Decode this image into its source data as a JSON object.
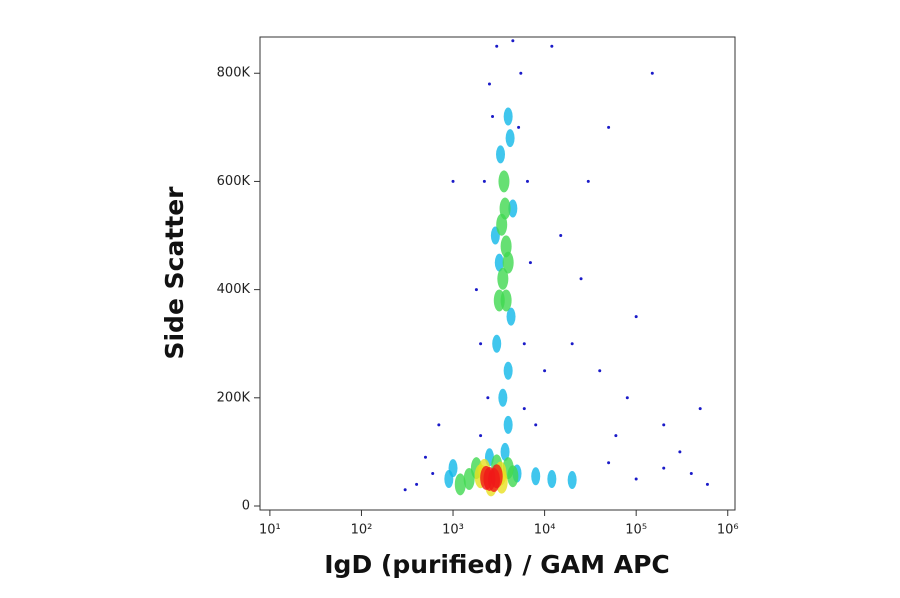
{
  "chart_data": {
    "type": "scatter",
    "x_label": "IgD (purified) / GAM APC",
    "y_label": "Side Scatter",
    "xscale": "log",
    "xlim": [
      7.8,
      1200000
    ],
    "ylim": [
      -7400,
      867000
    ],
    "xticks": [
      {
        "value": 10,
        "label": "10¹"
      },
      {
        "value": 100,
        "label": "10²"
      },
      {
        "value": 1000,
        "label": "10³"
      },
      {
        "value": 10000,
        "label": "10⁴"
      },
      {
        "value": 100000,
        "label": "10⁵"
      },
      {
        "value": 1000000,
        "label": "10⁶"
      }
    ],
    "yticks": [
      0,
      {
        "value": 200000,
        "label": "200K"
      },
      {
        "value": 400000,
        "label": "400K"
      },
      {
        "value": 600000,
        "label": "600K"
      },
      {
        "value": 800000,
        "label": "800K"
      }
    ],
    "series": [
      {
        "color": "#1a1ac8",
        "x": [
          2000,
          6000,
          2200,
          6500,
          2500,
          5500,
          3000,
          4500,
          1800,
          7000,
          2400,
          6000,
          2700,
          5200,
          20000,
          40000,
          15000,
          30000,
          80000,
          100000,
          200000,
          50000,
          150000,
          300000,
          500000,
          25000,
          60000,
          400000,
          600000,
          100000,
          200000,
          50000,
          8000,
          10000,
          400,
          600,
          300,
          500,
          700,
          1000,
          2000,
          12000
        ],
        "values": [
          300000,
          300000,
          600000,
          600000,
          780000,
          800000,
          850000,
          860000,
          400000,
          450000,
          200000,
          180000,
          720000,
          700000,
          300000,
          250000,
          500000,
          600000,
          200000,
          350000,
          150000,
          700000,
          800000,
          100000,
          180000,
          420000,
          130000,
          60000,
          40000,
          50000,
          70000,
          80000,
          150000,
          250000,
          40000,
          60000,
          30000,
          90000,
          150000,
          600000,
          130000,
          850000
        ]
      },
      {
        "color": "#10b8e8",
        "x": [
          3000,
          4000,
          3300,
          4200,
          2900,
          4500,
          3500,
          4000,
          5000,
          8000,
          12000,
          900,
          1000,
          2500,
          4000,
          3200,
          4300,
          20000,
          3700
        ],
        "values": [
          300000,
          250000,
          650000,
          680000,
          500000,
          550000,
          200000,
          150000,
          60000,
          55000,
          50000,
          50000,
          70000,
          90000,
          720000,
          450000,
          350000,
          48000,
          100000
        ]
      },
      {
        "color": "#40d850",
        "x": [
          1500,
          4000,
          1800,
          3000,
          3500,
          3800,
          3700,
          3400,
          4000,
          3600,
          3200,
          1200,
          4500,
          3800
        ],
        "values": [
          50000,
          70000,
          70000,
          75000,
          420000,
          480000,
          550000,
          520000,
          450000,
          600000,
          380000,
          40000,
          55000,
          380000
        ]
      },
      {
        "color": "#e8e020",
        "x": [
          2000,
          3300,
          2600,
          2200,
          3400
        ],
        "values": [
          55000,
          60000,
          40000,
          65000,
          45000
        ]
      },
      {
        "color": "#f01818",
        "x": [
          2500,
          2800,
          2300,
          3000
        ],
        "values": [
          50000,
          48000,
          52000,
          55000
        ]
      }
    ]
  }
}
